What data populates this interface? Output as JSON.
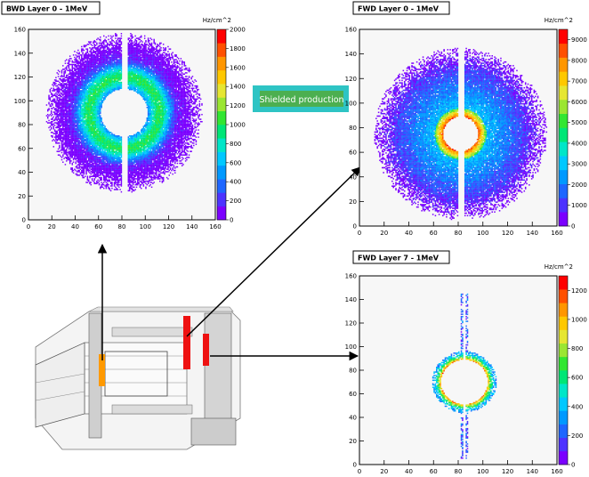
{
  "legend_box": {
    "label": "Shielded production",
    "background": "#2ec4c4",
    "text_background": "#4caf50"
  },
  "z_palette": [
    "#7b00ff",
    "#4d33ff",
    "#1e66ff",
    "#0099ff",
    "#00c8ff",
    "#00e6c8",
    "#00e676",
    "#32e632",
    "#9be632",
    "#e6e632",
    "#ffc800",
    "#ff9600",
    "#ff5000",
    "#ff0000"
  ],
  "chart_data": [
    {
      "type": "heatmap",
      "title": "BWD Layer 0 - 1MeV",
      "z_unit": "Hz/cm^2",
      "xlim": [
        0,
        160
      ],
      "ylim": [
        0,
        160
      ],
      "x_ticks": [
        "0",
        "20",
        "40",
        "60",
        "80",
        "100",
        "120",
        "140",
        "160"
      ],
      "y_ticks": [
        "0",
        "20",
        "40",
        "60",
        "80",
        "100",
        "120",
        "140",
        "160"
      ],
      "z_ticks": [
        "0",
        "200",
        "400",
        "600",
        "800",
        "1000",
        "1200",
        "1400",
        "1600",
        "1800",
        "2000"
      ],
      "zlim": [
        0,
        2000
      ],
      "hole": {
        "cx": 82,
        "cy": 90,
        "r": 20
      },
      "gap": {
        "x0": 80,
        "x1": 85
      },
      "ring": {
        "r_in": 20,
        "r_out": 67
      },
      "peak_fraction": 0.45
    },
    {
      "type": "heatmap",
      "title": "FWD Layer 0 - 1MeV",
      "z_unit": "Hz/cm^2",
      "xlim": [
        0,
        160
      ],
      "ylim": [
        0,
        160
      ],
      "x_ticks": [
        "0",
        "20",
        "40",
        "60",
        "80",
        "100",
        "120",
        "140",
        "160"
      ],
      "y_ticks": [
        "0",
        "20",
        "40",
        "60",
        "80",
        "100",
        "120",
        "140",
        "160"
      ],
      "z_ticks": [
        "0",
        "1000",
        "2000",
        "3000",
        "4000",
        "5000",
        "6000",
        "7000",
        "8000",
        "9000"
      ],
      "zlim": [
        0,
        9500
      ],
      "hole": {
        "cx": 82,
        "cy": 75,
        "r": 14
      },
      "gap": {
        "x0": 80,
        "x1": 85
      },
      "ring": {
        "r_in": 14,
        "r_out": 70
      },
      "peak_fraction": 0.75
    },
    {
      "type": "heatmap",
      "title": "FWD Layer 7 - 1MeV",
      "z_unit": "Hz/cm^2",
      "xlim": [
        0,
        160
      ],
      "ylim": [
        0,
        160
      ],
      "x_ticks": [
        "0",
        "20",
        "40",
        "60",
        "80",
        "100",
        "120",
        "140",
        "160"
      ],
      "y_ticks": [
        "0",
        "20",
        "40",
        "60",
        "80",
        "100",
        "120",
        "140",
        "160"
      ],
      "z_ticks": [
        "0",
        "200",
        "400",
        "600",
        "800",
        "1000",
        "1200"
      ],
      "zlim": [
        0,
        1300
      ],
      "hole": {
        "cx": 85,
        "cy": 70,
        "r": 19
      },
      "gap": {
        "x0": 84,
        "x1": 86
      },
      "ring": {
        "r_in": 19,
        "r_out": 26
      },
      "spike": {
        "y_top": 145,
        "y_bottom": 5
      },
      "peak_fraction": 0.7
    }
  ]
}
